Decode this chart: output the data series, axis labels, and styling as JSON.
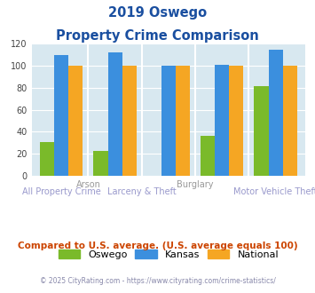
{
  "title_line1": "2019 Oswego",
  "title_line2": "Property Crime Comparison",
  "groups": [
    "All Property Crime",
    "Arson",
    "Larceny & Theft",
    "Burglary",
    "Motor Vehicle Theft"
  ],
  "oswego": [
    31,
    23,
    0,
    36,
    82
  ],
  "kansas": [
    110,
    112,
    100,
    101,
    115
  ],
  "national": [
    100,
    100,
    100,
    100,
    100
  ],
  "oswego_color": "#7aba2a",
  "kansas_color": "#3b8fde",
  "national_color": "#f5a623",
  "bg_color": "#d8e8f0",
  "title_color": "#1a4fa0",
  "xlabel_top_color": "#999999",
  "xlabel_bot_color": "#9999cc",
  "footer_color": "#8888aa",
  "note_color": "#cc4400",
  "ylim": [
    0,
    120
  ],
  "yticks": [
    0,
    20,
    40,
    60,
    80,
    100,
    120
  ],
  "footer_text": "© 2025 CityRating.com - https://www.cityrating.com/crime-statistics/",
  "note_text": "Compared to U.S. average. (U.S. average equals 100)"
}
